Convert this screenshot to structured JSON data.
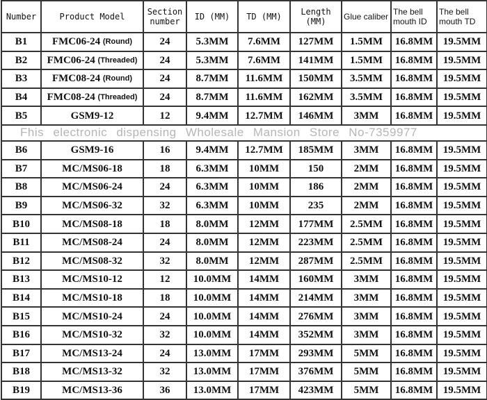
{
  "headers": [
    "Number",
    "Product Model",
    "Section number",
    "ID (MM)",
    "TD (MM)",
    "Length (MM)",
    "Glue caliber",
    "The bell mouth ID",
    "The bell mouth TD"
  ],
  "rows": [
    {
      "number": "B1",
      "model": "FMC06-24",
      "note": "(Round)",
      "section": "24",
      "id": "5.3MM",
      "td": "7.6MM",
      "length": "127MM",
      "glue": "1.5MM",
      "bell_id": "16.8MM",
      "bell_td": "19.5MM"
    },
    {
      "number": "B2",
      "model": "FMC06-24",
      "note": "(Threaded)",
      "section": "24",
      "id": "5.3MM",
      "td": "7.6MM",
      "length": "141MM",
      "glue": "1.5MM",
      "bell_id": "16.8MM",
      "bell_td": "19.5MM"
    },
    {
      "number": "B3",
      "model": "FMC08-24",
      "note": "(Round)",
      "section": "24",
      "id": "8.7MM",
      "td": "11.6MM",
      "length": "150MM",
      "glue": "3.5MM",
      "bell_id": "16.8MM",
      "bell_td": "19.5MM"
    },
    {
      "number": "B4",
      "model": "FMC08-24",
      "note": "(Threaded)",
      "section": "24",
      "id": "8.7MM",
      "td": "11.6MM",
      "length": "162MM",
      "glue": "3.5MM",
      "bell_id": "16.8MM",
      "bell_td": "19.5MM"
    },
    {
      "number": "B5",
      "model": "GSM9-12",
      "note": "",
      "section": "12",
      "id": "9.4MM",
      "td": "12.7MM",
      "length": "146MM",
      "glue": "3MM",
      "bell_id": "16.8MM",
      "bell_td": "19.5MM"
    },
    {
      "number": "B6",
      "model": "GSM9-16",
      "note": "",
      "section": "16",
      "id": "9.4MM",
      "td": "12.7MM",
      "length": "185MM",
      "glue": "3MM",
      "bell_id": "16.8MM",
      "bell_td": "19.5MM"
    },
    {
      "number": "B7",
      "model": "MC/MS06-18",
      "note": "",
      "section": "18",
      "id": "6.3MM",
      "td": "10MM",
      "length": "150",
      "glue": "2MM",
      "bell_id": "16.8MM",
      "bell_td": "19.5MM"
    },
    {
      "number": "B8",
      "model": "MC/MS06-24",
      "note": "",
      "section": "24",
      "id": "6.3MM",
      "td": "10MM",
      "length": "186",
      "glue": "2MM",
      "bell_id": "16.8MM",
      "bell_td": "19.5MM"
    },
    {
      "number": "B9",
      "model": "MC/MS06-32",
      "note": "",
      "section": "32",
      "id": "6.3MM",
      "td": "10MM",
      "length": "235",
      "glue": "2MM",
      "bell_id": "16.8MM",
      "bell_td": "19.5MM"
    },
    {
      "number": "B10",
      "model": "MC/MS08-18",
      "note": "",
      "section": "18",
      "id": "8.0MM",
      "td": "12MM",
      "length": "177MM",
      "glue": "2.5MM",
      "bell_id": "16.8MM",
      "bell_td": "19.5MM"
    },
    {
      "number": "B11",
      "model": "MC/MS08-24",
      "note": "",
      "section": "24",
      "id": "8.0MM",
      "td": "12MM",
      "length": "223MM",
      "glue": "2.5MM",
      "bell_id": "16.8MM",
      "bell_td": "19.5MM"
    },
    {
      "number": "B12",
      "model": "MC/MS08-32",
      "note": "",
      "section": "32",
      "id": "8.0MM",
      "td": "12MM",
      "length": "287MM",
      "glue": "2.5MM",
      "bell_id": "16.8MM",
      "bell_td": "19.5MM"
    },
    {
      "number": "B13",
      "model": "MC/MS10-12",
      "note": "",
      "section": "12",
      "id": "10.0MM",
      "td": "14MM",
      "length": "160MM",
      "glue": "3MM",
      "bell_id": "16.8MM",
      "bell_td": "19.5MM"
    },
    {
      "number": "B14",
      "model": "MC/MS10-18",
      "note": "",
      "section": "18",
      "id": "10.0MM",
      "td": "14MM",
      "length": "214MM",
      "glue": "3MM",
      "bell_id": "16.8MM",
      "bell_td": "19.5MM"
    },
    {
      "number": "B15",
      "model": "MC/MS10-24",
      "note": "",
      "section": "24",
      "id": "10.0MM",
      "td": "14MM",
      "length": "276MM",
      "glue": "3MM",
      "bell_id": "16.8MM",
      "bell_td": "19.5MM"
    },
    {
      "number": "B16",
      "model": "MC/MS10-32",
      "note": "",
      "section": "32",
      "id": "10.0MM",
      "td": "14MM",
      "length": "352MM",
      "glue": "3MM",
      "bell_id": "16.8MM",
      "bell_td": "19.5MM"
    },
    {
      "number": "B17",
      "model": "MC/MS13-24",
      "note": "",
      "section": "24",
      "id": "13.0MM",
      "td": "17MM",
      "length": "293MM",
      "glue": "5MM",
      "bell_id": "16.8MM",
      "bell_td": "19.5MM"
    },
    {
      "number": "B18",
      "model": "MC/MS13-32",
      "note": "",
      "section": "32",
      "id": "13.0MM",
      "td": "17MM",
      "length": "376MM",
      "glue": "5MM",
      "bell_id": "16.8MM",
      "bell_td": "19.5MM"
    },
    {
      "number": "B19",
      "model": "MC/MS13-36",
      "note": "",
      "section": "36",
      "id": "13.0MM",
      "td": "17MM",
      "length": "423MM",
      "glue": "5MM",
      "bell_id": "16.8MM",
      "bell_td": "19.5MM"
    }
  ],
  "watermark": "Fhis electronic dispensing Wholesale Mansion Store No-7359977"
}
